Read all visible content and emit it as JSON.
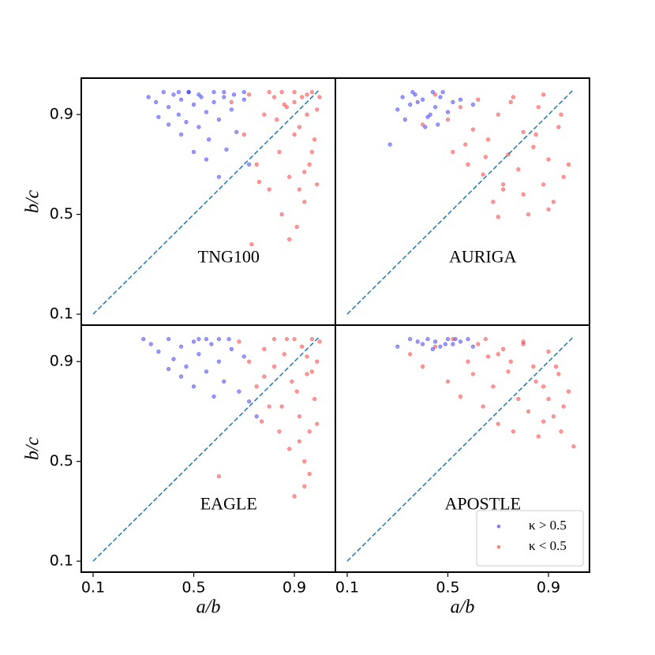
{
  "chart_data": [
    {
      "type": "scatter",
      "title": "TNG100",
      "ylabel": "b/c",
      "xlim": [
        0.053,
        1.063
      ],
      "ylim": [
        0.056,
        1.046
      ],
      "yticks": [
        0.1,
        0.5,
        0.9
      ],
      "reference_line": [
        0.1,
        1.0
      ],
      "series": [
        {
          "color": "#0000ff",
          "x": [
            0.32,
            0.35,
            0.38,
            0.4,
            0.42,
            0.44,
            0.45,
            0.47,
            0.48,
            0.5,
            0.52,
            0.53,
            0.55,
            0.56,
            0.58,
            0.6,
            0.62,
            0.63,
            0.65,
            0.67,
            0.7,
            0.72,
            0.4,
            0.45,
            0.5,
            0.55,
            0.6,
            0.48,
            0.52,
            0.58,
            0.44,
            0.36,
            0.62,
            0.66,
            0.7
          ],
          "values": [
            0.97,
            0.95,
            0.99,
            0.93,
            0.98,
            0.9,
            0.96,
            0.87,
            0.99,
            0.94,
            0.85,
            0.97,
            0.91,
            0.8,
            0.95,
            0.88,
            0.97,
            0.76,
            0.92,
            0.83,
            0.96,
            0.7,
            0.86,
            0.82,
            0.75,
            0.72,
            0.65,
            0.99,
            0.98,
            0.99,
            0.99,
            0.89,
            0.99,
            0.98,
            0.99
          ]
        },
        {
          "color": "#ff0000",
          "x": [
            0.65,
            0.7,
            0.72,
            0.75,
            0.78,
            0.8,
            0.82,
            0.84,
            0.85,
            0.87,
            0.88,
            0.9,
            0.91,
            0.92,
            0.93,
            0.94,
            0.95,
            0.96,
            0.97,
            0.98,
            0.99,
            1.0,
            0.8,
            0.85,
            0.9,
            0.95,
            0.88,
            0.92,
            0.76,
            0.83,
            0.97,
            0.9,
            0.94,
            0.86,
            0.99,
            0.73
          ],
          "values": [
            0.95,
            0.82,
            0.98,
            0.7,
            0.9,
            0.6,
            0.97,
            0.75,
            0.5,
            0.93,
            0.65,
            0.99,
            0.45,
            0.85,
            0.97,
            0.55,
            0.9,
            0.7,
            0.99,
            0.8,
            0.92,
            0.97,
            0.99,
            0.99,
            0.95,
            0.98,
            0.4,
            0.6,
            0.63,
            0.88,
            0.75,
            0.82,
            0.67,
            0.94,
            0.62,
            0.38
          ]
        }
      ]
    },
    {
      "type": "scatter",
      "title": "AURIGA",
      "xlim": [
        0.053,
        1.063
      ],
      "ylim": [
        0.056,
        1.046
      ],
      "reference_line": [
        0.1,
        1.0
      ],
      "series": [
        {
          "color": "#0000ff",
          "x": [
            0.27,
            0.3,
            0.32,
            0.35,
            0.37,
            0.4,
            0.42,
            0.44,
            0.45,
            0.47,
            0.5,
            0.33,
            0.38,
            0.41,
            0.48,
            0.52,
            0.36,
            0.43,
            0.55,
            0.6,
            0.46
          ],
          "values": [
            0.78,
            0.92,
            0.97,
            0.94,
            0.98,
            0.96,
            0.89,
            0.99,
            0.93,
            0.97,
            0.91,
            0.88,
            0.95,
            0.85,
            0.99,
            0.95,
            0.99,
            0.9,
            0.96,
            0.94,
            0.86
          ]
        },
        {
          "color": "#ff0000",
          "x": [
            0.4,
            0.45,
            0.5,
            0.52,
            0.55,
            0.58,
            0.6,
            0.62,
            0.64,
            0.66,
            0.68,
            0.7,
            0.72,
            0.74,
            0.76,
            0.78,
            0.8,
            0.82,
            0.84,
            0.86,
            0.88,
            0.9,
            0.92,
            0.94,
            0.96,
            0.98,
            0.7,
            0.75,
            0.8,
            0.85,
            0.9,
            0.95,
            0.65,
            0.57,
            0.72,
            0.88
          ],
          "values": [
            0.86,
            0.98,
            0.88,
            0.75,
            0.93,
            0.7,
            0.84,
            0.96,
            0.66,
            0.8,
            0.55,
            0.9,
            0.6,
            0.74,
            0.97,
            0.68,
            0.83,
            0.5,
            0.77,
            0.93,
            0.62,
            0.72,
            0.55,
            0.85,
            0.65,
            0.7,
            0.49,
            0.95,
            0.58,
            0.82,
            0.52,
            0.9,
            0.73,
            0.78,
            0.62,
            0.98
          ]
        }
      ]
    },
    {
      "type": "scatter",
      "title": "EAGLE",
      "ylabel": "b/c",
      "xlabel": "a/b",
      "xlim": [
        0.053,
        1.063
      ],
      "ylim": [
        0.056,
        1.046
      ],
      "xticks": [
        0.1,
        0.5,
        0.9
      ],
      "yticks": [
        0.1,
        0.5,
        0.9
      ],
      "reference_line": [
        0.1,
        1.0
      ],
      "series": [
        {
          "color": "#0000ff",
          "x": [
            0.3,
            0.33,
            0.36,
            0.4,
            0.42,
            0.45,
            0.47,
            0.5,
            0.52,
            0.55,
            0.57,
            0.6,
            0.62,
            0.65,
            0.68,
            0.7,
            0.72,
            0.75,
            0.45,
            0.5,
            0.55,
            0.6,
            0.4,
            0.52,
            0.64,
            0.58
          ],
          "values": [
            0.99,
            0.97,
            0.94,
            0.99,
            0.91,
            0.96,
            0.88,
            0.98,
            0.93,
            0.86,
            0.97,
            0.9,
            0.82,
            0.95,
            0.78,
            0.92,
            0.74,
            0.68,
            0.84,
            0.8,
            0.99,
            0.99,
            0.87,
            0.99,
            0.99,
            0.76
          ]
        },
        {
          "color": "#ff0000",
          "x": [
            0.68,
            0.72,
            0.75,
            0.78,
            0.8,
            0.82,
            0.84,
            0.86,
            0.88,
            0.9,
            0.91,
            0.92,
            0.93,
            0.94,
            0.95,
            0.96,
            0.97,
            0.98,
            0.99,
            1.0,
            0.82,
            0.87,
            0.92,
            0.96,
            0.9,
            0.85,
            0.78,
            0.95,
            0.99,
            0.89,
            0.6,
            0.94,
            0.77,
            0.97
          ],
          "values": [
            0.98,
            0.9,
            0.8,
            0.95,
            0.72,
            0.88,
            0.62,
            0.93,
            0.55,
            0.99,
            0.78,
            0.68,
            0.96,
            0.5,
            0.85,
            0.62,
            0.99,
            0.75,
            0.9,
            0.98,
            0.99,
            0.99,
            0.58,
            0.45,
            0.36,
            0.72,
            0.84,
            0.92,
            0.65,
            0.82,
            0.44,
            0.4,
            0.66,
            0.86
          ]
        }
      ]
    },
    {
      "type": "scatter",
      "title": "APOSTLE",
      "xlabel": "a/b",
      "legend": "lower right",
      "xlim": [
        0.053,
        1.063
      ],
      "ylim": [
        0.056,
        1.046
      ],
      "xticks": [
        0.1,
        0.5,
        0.9
      ],
      "reference_line": [
        0.1,
        1.0
      ],
      "series": [
        {
          "name": "κ > 0.5",
          "color": "#0000ff",
          "x": [
            0.3,
            0.35,
            0.38,
            0.4,
            0.42,
            0.45,
            0.47,
            0.5,
            0.52,
            0.55,
            0.58,
            0.6,
            0.44,
            0.49,
            0.53
          ],
          "values": [
            0.96,
            0.99,
            0.98,
            0.97,
            0.99,
            0.98,
            0.96,
            0.99,
            0.97,
            0.98,
            0.99,
            0.96,
            0.95,
            0.97,
            0.99
          ]
        },
        {
          "name": "κ < 0.5",
          "color": "#ff0000",
          "x": [
            0.35,
            0.4,
            0.45,
            0.5,
            0.52,
            0.55,
            0.58,
            0.6,
            0.62,
            0.64,
            0.66,
            0.68,
            0.7,
            0.72,
            0.74,
            0.76,
            0.78,
            0.8,
            0.82,
            0.84,
            0.86,
            0.88,
            0.9,
            0.92,
            0.94,
            0.96,
            0.98,
            1.0,
            0.75,
            0.85,
            0.95,
            0.65,
            0.7,
            0.8,
            0.9,
            0.88,
            0.93
          ],
          "values": [
            0.93,
            0.88,
            0.96,
            0.82,
            0.99,
            0.76,
            0.9,
            0.85,
            0.97,
            0.72,
            0.92,
            0.8,
            0.65,
            0.95,
            0.86,
            0.62,
            0.75,
            0.98,
            0.7,
            0.88,
            0.6,
            0.8,
            0.94,
            0.68,
            0.85,
            0.72,
            0.78,
            0.56,
            0.9,
            0.82,
            0.62,
            0.99,
            0.93,
            0.97,
            0.75,
            0.66,
            0.88
          ]
        }
      ]
    }
  ]
}
